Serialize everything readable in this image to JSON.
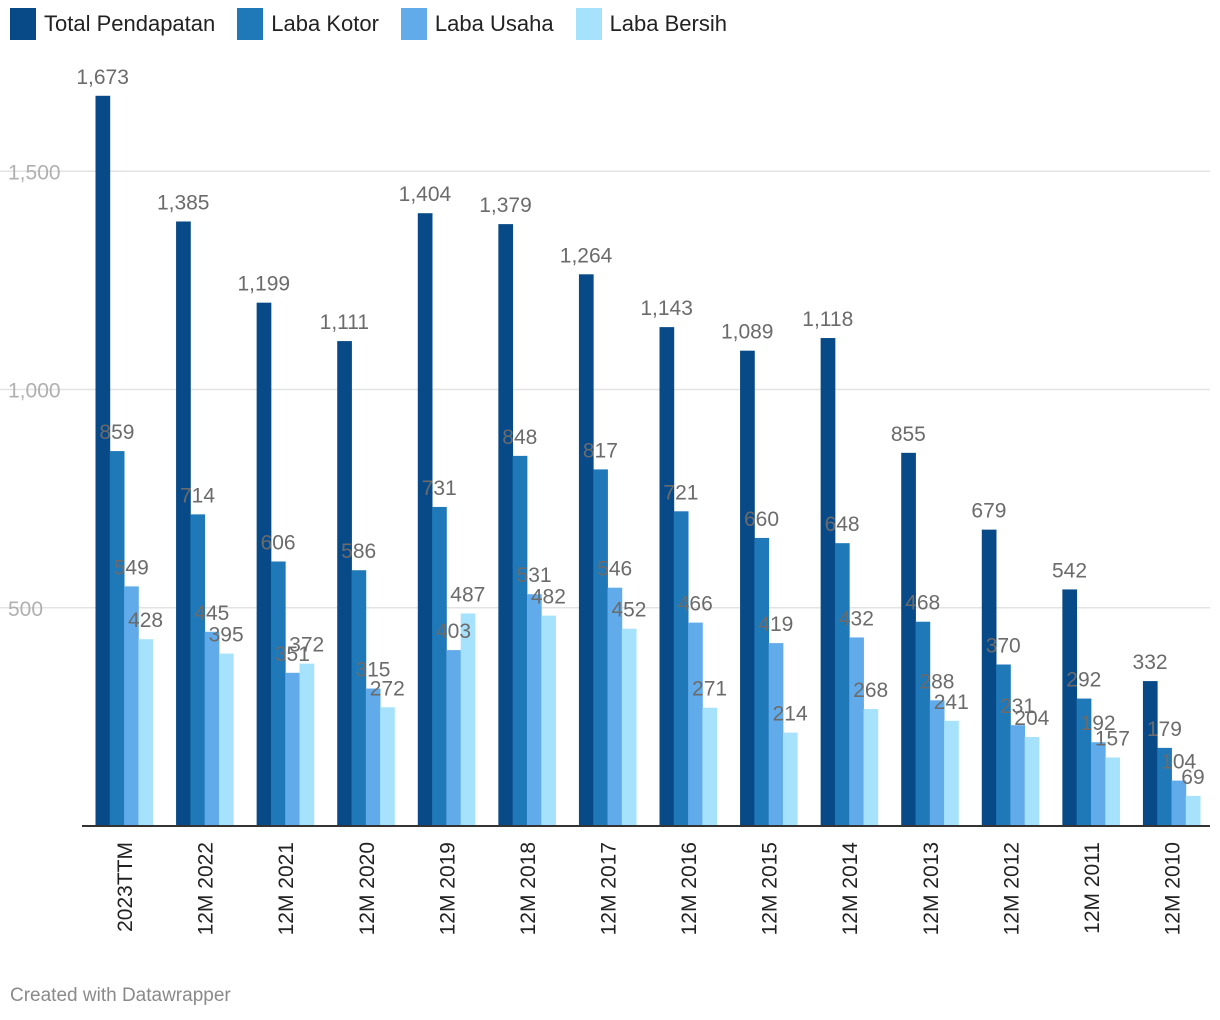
{
  "legend": [
    {
      "label": "Total Pendapatan",
      "color": "#084a87"
    },
    {
      "label": "Laba Kotor",
      "color": "#1f78b8"
    },
    {
      "label": "Laba Usaha",
      "color": "#62abea"
    },
    {
      "label": "Laba Bersih",
      "color": "#a6e2fc"
    }
  ],
  "credit": "Created with Datawrapper",
  "chart_data": {
    "type": "bar",
    "categories": [
      "2023TTM",
      "12M 2022",
      "12M 2021",
      "12M 2020",
      "12M 2019",
      "12M 2018",
      "12M 2017",
      "12M 2016",
      "12M 2015",
      "12M 2014",
      "12M 2013",
      "12M 2012",
      "12M 2011",
      "12M 2010"
    ],
    "series": [
      {
        "name": "Total Pendapatan",
        "color": "#084a87",
        "values": [
          1673,
          1385,
          1199,
          1111,
          1404,
          1379,
          1264,
          1143,
          1089,
          1118,
          855,
          679,
          542,
          332
        ],
        "labels": [
          "1,673",
          "1,385",
          "1,199",
          "1,111",
          "1,404",
          "1,379",
          "1,264",
          "1,143",
          "1,089",
          "1,118",
          "855",
          "679",
          "542",
          "332"
        ]
      },
      {
        "name": "Laba Kotor",
        "color": "#1f78b8",
        "values": [
          859,
          714,
          606,
          586,
          731,
          848,
          817,
          721,
          660,
          648,
          468,
          370,
          292,
          179
        ],
        "labels": [
          "859",
          "714",
          "606",
          "586",
          "731",
          "848",
          "817",
          "721",
          "660",
          "648",
          "468",
          "370",
          "292",
          "179"
        ]
      },
      {
        "name": "Laba Usaha",
        "color": "#62abea",
        "values": [
          549,
          445,
          351,
          315,
          403,
          531,
          546,
          466,
          419,
          432,
          288,
          231,
          192,
          104
        ],
        "labels": [
          "549",
          "445",
          "351",
          "315",
          "403",
          "531",
          "546",
          "466",
          "419",
          "432",
          "288",
          "231",
          "192",
          "104"
        ]
      },
      {
        "name": "Laba Bersih",
        "color": "#a6e2fc",
        "values": [
          428,
          395,
          372,
          272,
          487,
          482,
          452,
          271,
          214,
          268,
          241,
          204,
          157,
          69
        ],
        "labels": [
          "428",
          "395",
          "372",
          "272",
          "487",
          "482",
          "452",
          "271",
          "214",
          "268",
          "241",
          "204",
          "157",
          "69"
        ]
      }
    ],
    "ylim": [
      0,
      1700
    ],
    "yticks": [
      500,
      1000,
      1500
    ],
    "ytick_labels": [
      "500",
      "1,000",
      "1,500"
    ],
    "grid": true,
    "legend_position": "top-left"
  }
}
